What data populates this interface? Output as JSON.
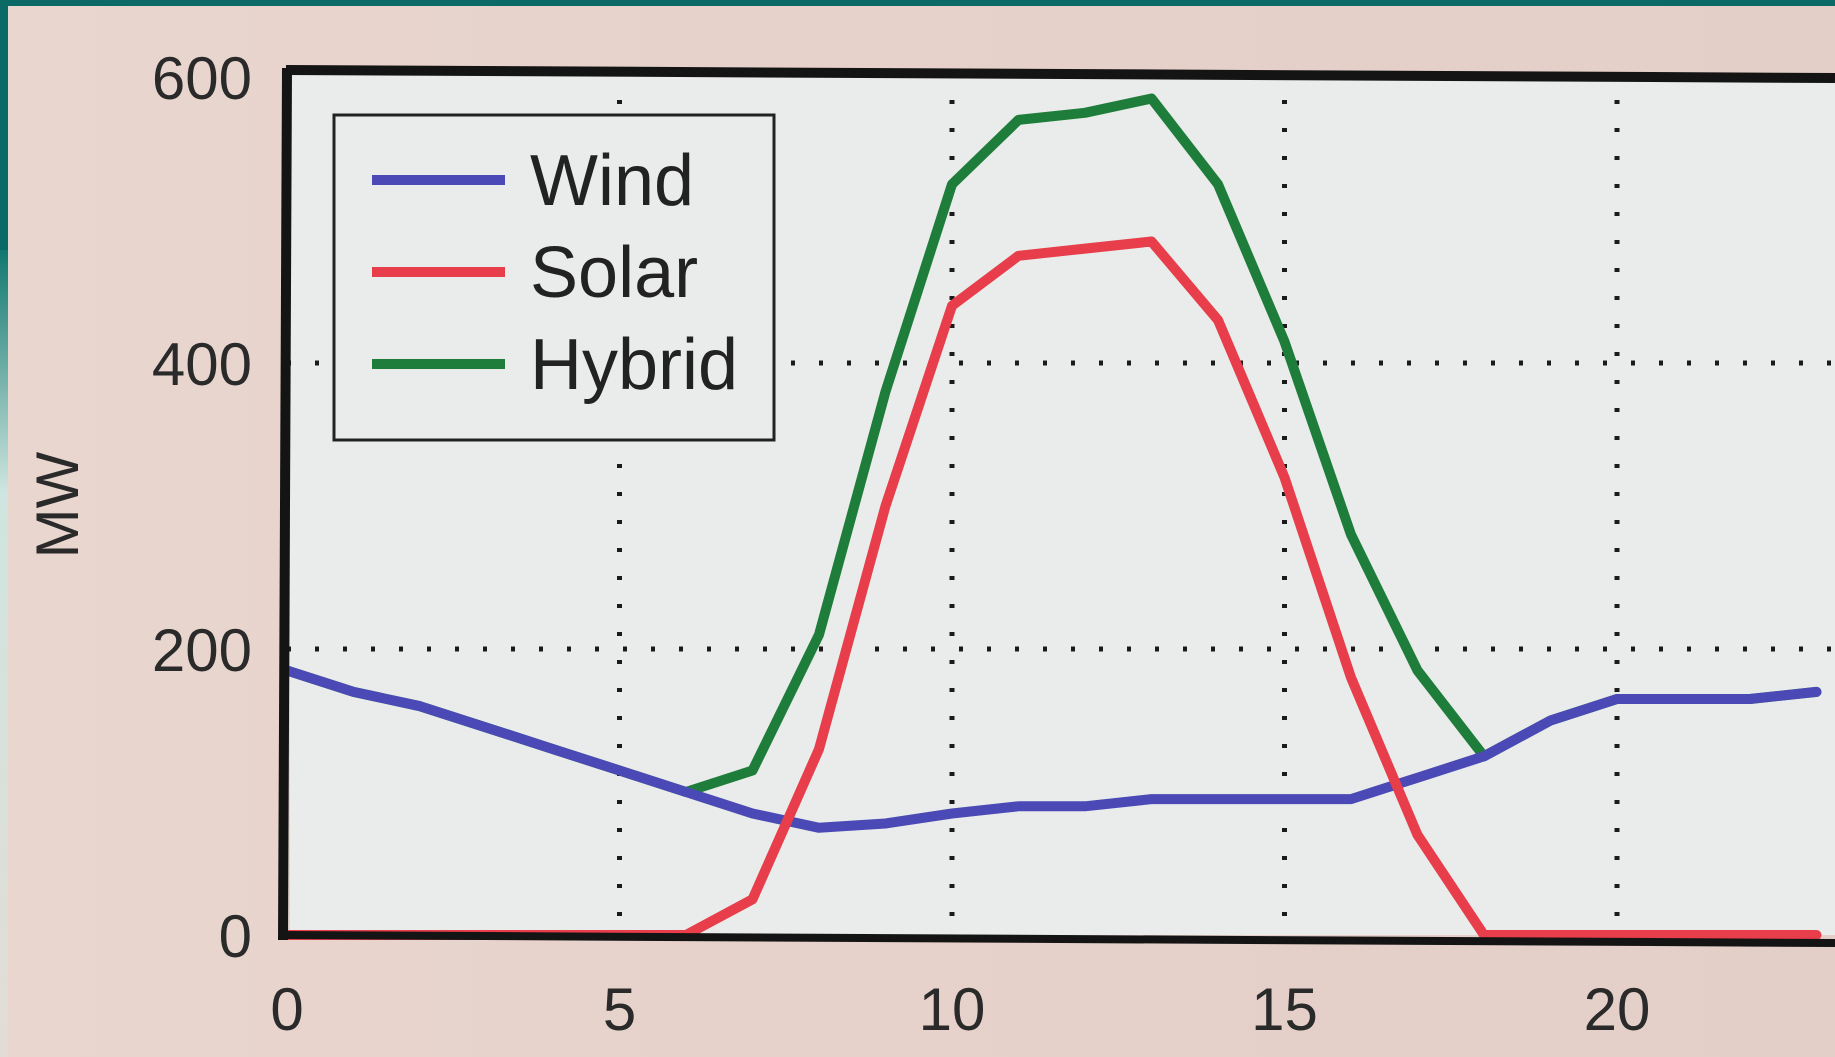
{
  "chart_data": {
    "type": "line",
    "title": "",
    "xlabel": "",
    "ylabel": "MW",
    "xlim": [
      0,
      23
    ],
    "ylim": [
      0,
      600
    ],
    "xticks": [
      0,
      5,
      10,
      15,
      20
    ],
    "yticks": [
      0,
      200,
      400,
      600
    ],
    "grid": true,
    "legend_position": "top-left",
    "x": [
      0,
      1,
      2,
      3,
      4,
      5,
      6,
      7,
      8,
      9,
      10,
      11,
      12,
      13,
      14,
      15,
      16,
      17,
      18,
      19,
      20,
      21,
      22,
      23
    ],
    "series": [
      {
        "name": "Wind",
        "color": "#4a49b5",
        "values": [
          185,
          170,
          160,
          145,
          130,
          115,
          100,
          85,
          75,
          78,
          85,
          90,
          90,
          95,
          95,
          95,
          95,
          110,
          125,
          150,
          165,
          165,
          165,
          170
        ]
      },
      {
        "name": "Solar",
        "color": "#e83d4a",
        "values": [
          0,
          0,
          0,
          0,
          0,
          0,
          0,
          25,
          130,
          300,
          440,
          475,
          480,
          485,
          430,
          320,
          180,
          70,
          0,
          0,
          0,
          0,
          0,
          0
        ]
      },
      {
        "name": "Hybrid",
        "color": "#1e7d3a",
        "values": [
          185,
          170,
          160,
          145,
          130,
          115,
          100,
          115,
          210,
          380,
          525,
          570,
          575,
          585,
          525,
          415,
          280,
          185,
          125,
          150,
          165,
          165,
          165,
          170
        ]
      }
    ]
  }
}
